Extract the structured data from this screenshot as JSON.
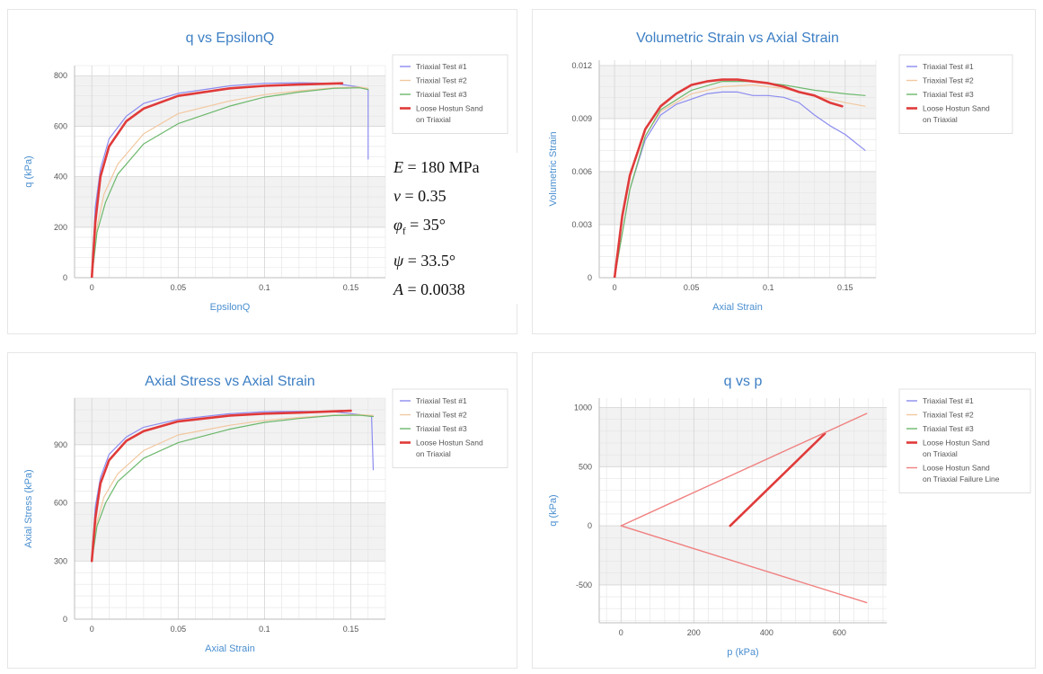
{
  "colors": {
    "test1": "#8c8cf0",
    "test2": "#f2c8a0",
    "test3": "#6cb86c",
    "model": "#e03a3a",
    "failure": "#f08080",
    "title": "#3d7fc4",
    "band": "#f2f2f2",
    "grid": "#e4e4e4"
  },
  "legend_labels": {
    "t1": "Triaxial Test #1",
    "t2": "Triaxial Test #2",
    "t3": "Triaxial Test #3",
    "model1": "Loose Hostun Sand",
    "model2": "on Triaxial",
    "failure1": "Loose Hostun Sand",
    "failure2": "on Triaxial Failure Line"
  },
  "params": {
    "E_sym": "E",
    "E_val": " = 180 MPa",
    "nu_sym": "ν",
    "nu_val": " = 0.35",
    "phi_sym": "φ",
    "phi_sub": "f",
    "phi_val": " = 35°",
    "psi_sym": "ψ",
    "psi_val": " = 33.5°",
    "A_sym": "A",
    "A_val": " = 0.0038"
  },
  "chart_data": [
    {
      "id": "c1",
      "type": "line",
      "title": "q vs EpsilonQ",
      "xlabel": "EpsilonQ",
      "ylabel": "q (kPa)",
      "xlim": [
        -0.01,
        0.17
      ],
      "ylim": [
        0,
        840
      ],
      "xticks": [
        0,
        0.05,
        0.1,
        0.15
      ],
      "xtick_labels": [
        "0",
        "0.05",
        "0.1",
        "0.15"
      ],
      "yticks": [
        0,
        200,
        400,
        600,
        800
      ],
      "ytick_labels": [
        "0",
        "200",
        "400",
        "600",
        "800"
      ],
      "bands": [
        [
          200,
          400
        ],
        [
          600,
          800
        ]
      ],
      "legend": [
        "t1",
        "t2",
        "t3",
        "model"
      ],
      "series": [
        {
          "key": "t1",
          "x": [
            0,
            0.002,
            0.005,
            0.01,
            0.02,
            0.03,
            0.05,
            0.08,
            0.1,
            0.12,
            0.14,
            0.155,
            0.16,
            0.16
          ],
          "y": [
            0,
            280,
            430,
            550,
            640,
            690,
            730,
            760,
            770,
            772,
            770,
            755,
            745,
            470
          ]
        },
        {
          "key": "t2",
          "x": [
            0,
            0.003,
            0.007,
            0.015,
            0.03,
            0.05,
            0.08,
            0.1,
            0.12,
            0.14,
            0.155,
            0.16
          ],
          "y": [
            0,
            200,
            330,
            450,
            570,
            650,
            700,
            725,
            740,
            752,
            755,
            750
          ]
        },
        {
          "key": "t3",
          "x": [
            0,
            0.003,
            0.008,
            0.015,
            0.03,
            0.05,
            0.08,
            0.1,
            0.12,
            0.14,
            0.155,
            0.16
          ],
          "y": [
            0,
            180,
            300,
            410,
            530,
            610,
            680,
            715,
            735,
            750,
            752,
            745
          ]
        },
        {
          "key": "model",
          "x": [
            0,
            0.002,
            0.005,
            0.01,
            0.02,
            0.03,
            0.05,
            0.08,
            0.1,
            0.12,
            0.145
          ],
          "y": [
            0,
            220,
            400,
            520,
            620,
            670,
            720,
            750,
            760,
            765,
            770
          ]
        }
      ]
    },
    {
      "id": "c2",
      "type": "line",
      "title": "Volumetric Strain vs Axial Strain",
      "xlabel": "Axial Strain",
      "ylabel": "Volumetric Strain",
      "xlim": [
        -0.01,
        0.17
      ],
      "ylim": [
        0,
        0.0123
      ],
      "xticks": [
        0,
        0.05,
        0.1,
        0.15
      ],
      "xtick_labels": [
        "0",
        "0.05",
        "0.1",
        "0.15"
      ],
      "yticks": [
        0,
        0.003,
        0.006,
        0.009,
        0.012
      ],
      "ytick_labels": [
        "0",
        "0.003",
        "0.006",
        "0.009",
        "0.012"
      ],
      "bands": [
        [
          0.003,
          0.006
        ],
        [
          0.009,
          0.012
        ]
      ],
      "legend": [
        "t1",
        "t2",
        "t3",
        "model"
      ],
      "series": [
        {
          "key": "t1",
          "x": [
            0,
            0.01,
            0.02,
            0.03,
            0.04,
            0.05,
            0.06,
            0.07,
            0.08,
            0.09,
            0.1,
            0.11,
            0.12,
            0.13,
            0.14,
            0.15,
            0.163
          ],
          "y": [
            0,
            0.005,
            0.0078,
            0.0092,
            0.0098,
            0.0101,
            0.0104,
            0.0105,
            0.0105,
            0.0103,
            0.0103,
            0.0102,
            0.0099,
            0.0092,
            0.0086,
            0.0081,
            0.0072
          ]
        },
        {
          "key": "t2",
          "x": [
            0,
            0.01,
            0.02,
            0.03,
            0.05,
            0.07,
            0.09,
            0.11,
            0.13,
            0.15,
            0.163
          ],
          "y": [
            0,
            0.005,
            0.008,
            0.0094,
            0.0104,
            0.0108,
            0.0109,
            0.0107,
            0.0103,
            0.0099,
            0.0097
          ]
        },
        {
          "key": "t3",
          "x": [
            0,
            0.01,
            0.02,
            0.03,
            0.05,
            0.07,
            0.09,
            0.11,
            0.13,
            0.15,
            0.163
          ],
          "y": [
            0,
            0.005,
            0.008,
            0.0095,
            0.0106,
            0.0111,
            0.0111,
            0.0109,
            0.0106,
            0.0104,
            0.0103
          ]
        },
        {
          "key": "model",
          "x": [
            0,
            0.005,
            0.01,
            0.02,
            0.03,
            0.04,
            0.05,
            0.06,
            0.07,
            0.08,
            0.09,
            0.1,
            0.11,
            0.12,
            0.13,
            0.14,
            0.148
          ],
          "y": [
            0,
            0.0035,
            0.0058,
            0.0084,
            0.0097,
            0.0104,
            0.0109,
            0.0111,
            0.0112,
            0.0112,
            0.0111,
            0.011,
            0.0108,
            0.0105,
            0.0103,
            0.0099,
            0.0097
          ]
        }
      ]
    },
    {
      "id": "c3",
      "type": "line",
      "title": "Axial Stress vs Axial Strain",
      "xlabel": "Axial Strain",
      "ylabel": "Axial Stress (kPa)",
      "xlim": [
        -0.01,
        0.17
      ],
      "ylim": [
        0,
        1140
      ],
      "xticks": [
        0,
        0.05,
        0.1,
        0.15
      ],
      "xtick_labels": [
        "0",
        "0.05",
        "0.1",
        "0.15"
      ],
      "yticks": [
        0,
        300,
        600,
        900
      ],
      "ytick_labels": [
        "0",
        "300",
        "600",
        "900"
      ],
      "bands": [
        [
          300,
          600
        ],
        [
          900,
          1140
        ]
      ],
      "legend": [
        "t1",
        "t2",
        "t3",
        "model"
      ],
      "series": [
        {
          "key": "t1",
          "x": [
            0,
            0.002,
            0.005,
            0.01,
            0.02,
            0.03,
            0.05,
            0.08,
            0.1,
            0.12,
            0.14,
            0.155,
            0.162,
            0.163
          ],
          "y": [
            300,
            580,
            730,
            850,
            940,
            990,
            1030,
            1060,
            1070,
            1072,
            1070,
            1055,
            1045,
            770
          ]
        },
        {
          "key": "t2",
          "x": [
            0,
            0.003,
            0.007,
            0.015,
            0.03,
            0.05,
            0.08,
            0.1,
            0.12,
            0.14,
            0.155,
            0.163
          ],
          "y": [
            300,
            500,
            630,
            750,
            870,
            950,
            1000,
            1025,
            1040,
            1052,
            1055,
            1050
          ]
        },
        {
          "key": "t3",
          "x": [
            0,
            0.003,
            0.008,
            0.015,
            0.03,
            0.05,
            0.08,
            0.1,
            0.12,
            0.14,
            0.155,
            0.163
          ],
          "y": [
            300,
            480,
            600,
            710,
            830,
            910,
            980,
            1015,
            1035,
            1050,
            1052,
            1045
          ]
        },
        {
          "key": "model",
          "x": [
            0,
            0.002,
            0.005,
            0.01,
            0.02,
            0.03,
            0.05,
            0.08,
            0.1,
            0.12,
            0.15
          ],
          "y": [
            300,
            520,
            700,
            820,
            920,
            970,
            1020,
            1050,
            1060,
            1065,
            1075
          ]
        }
      ]
    },
    {
      "id": "c4",
      "type": "line",
      "title": "q vs p",
      "xlabel": "p (kPa)",
      "ylabel": "q (kPa)",
      "xlim": [
        -60,
        730
      ],
      "ylim": [
        -820,
        1080
      ],
      "xticks": [
        0,
        200,
        400,
        600
      ],
      "xtick_labels": [
        "0",
        "200",
        "400",
        "600"
      ],
      "yticks": [
        -500,
        0,
        500,
        1000
      ],
      "ytick_labels": [
        "-500",
        "0",
        "500",
        "1000"
      ],
      "bands": [
        [
          -500,
          0
        ],
        [
          500,
          1000
        ]
      ],
      "legend": [
        "t1",
        "t2",
        "t3",
        "model",
        "failure"
      ],
      "series": [
        {
          "key": "model",
          "x": [
            300,
            560
          ],
          "y": [
            0,
            780
          ]
        },
        {
          "key": "failure",
          "x": [
            0,
            675
          ],
          "y": [
            0,
            950
          ]
        },
        {
          "key": "failure",
          "x": [
            0,
            675
          ],
          "y": [
            0,
            -650
          ]
        }
      ]
    }
  ]
}
